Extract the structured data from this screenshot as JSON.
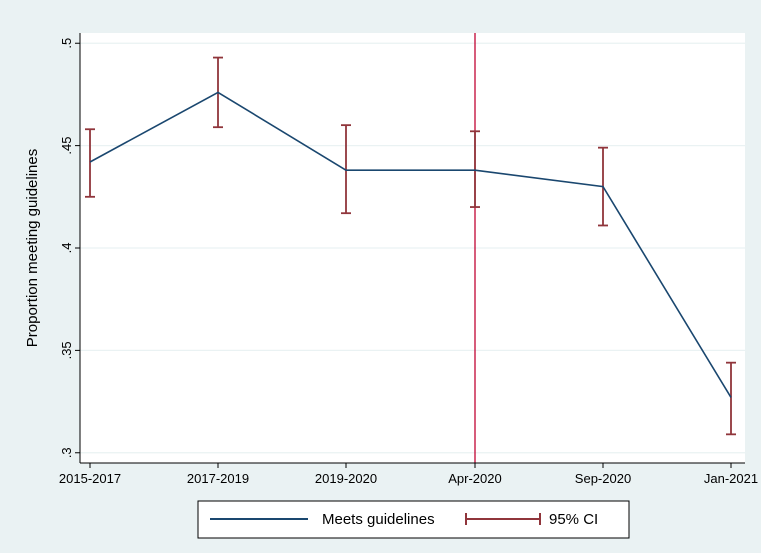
{
  "chart_data": {
    "type": "line",
    "title": "",
    "xlabel": "",
    "ylabel": "Proportion meeting guidelines",
    "categories": [
      "2015-2017",
      "2017-2019",
      "2019-2020",
      "Apr-2020",
      "Sep-2020",
      "Jan-2021"
    ],
    "series": [
      {
        "name": "Meets guidelines",
        "values": [
          0.442,
          0.476,
          0.438,
          0.438,
          0.43,
          0.327
        ],
        "color": "#1a476f"
      }
    ],
    "ci": {
      "name": "95% CI",
      "lower": [
        0.425,
        0.459,
        0.417,
        0.42,
        0.411,
        0.309
      ],
      "upper": [
        0.458,
        0.493,
        0.46,
        0.457,
        0.449,
        0.344
      ],
      "color": "#90353b"
    },
    "reference_line": {
      "category": "Apr-2020",
      "color": "#c10534"
    },
    "ylim": [
      0.295,
      0.505
    ],
    "yticks": [
      0.3,
      0.35,
      0.4,
      0.45,
      0.5
    ],
    "ytick_labels": [
      ".3",
      ".35",
      ".4",
      ".45",
      ".5"
    ],
    "grid": true,
    "legend_position": "bottom"
  }
}
